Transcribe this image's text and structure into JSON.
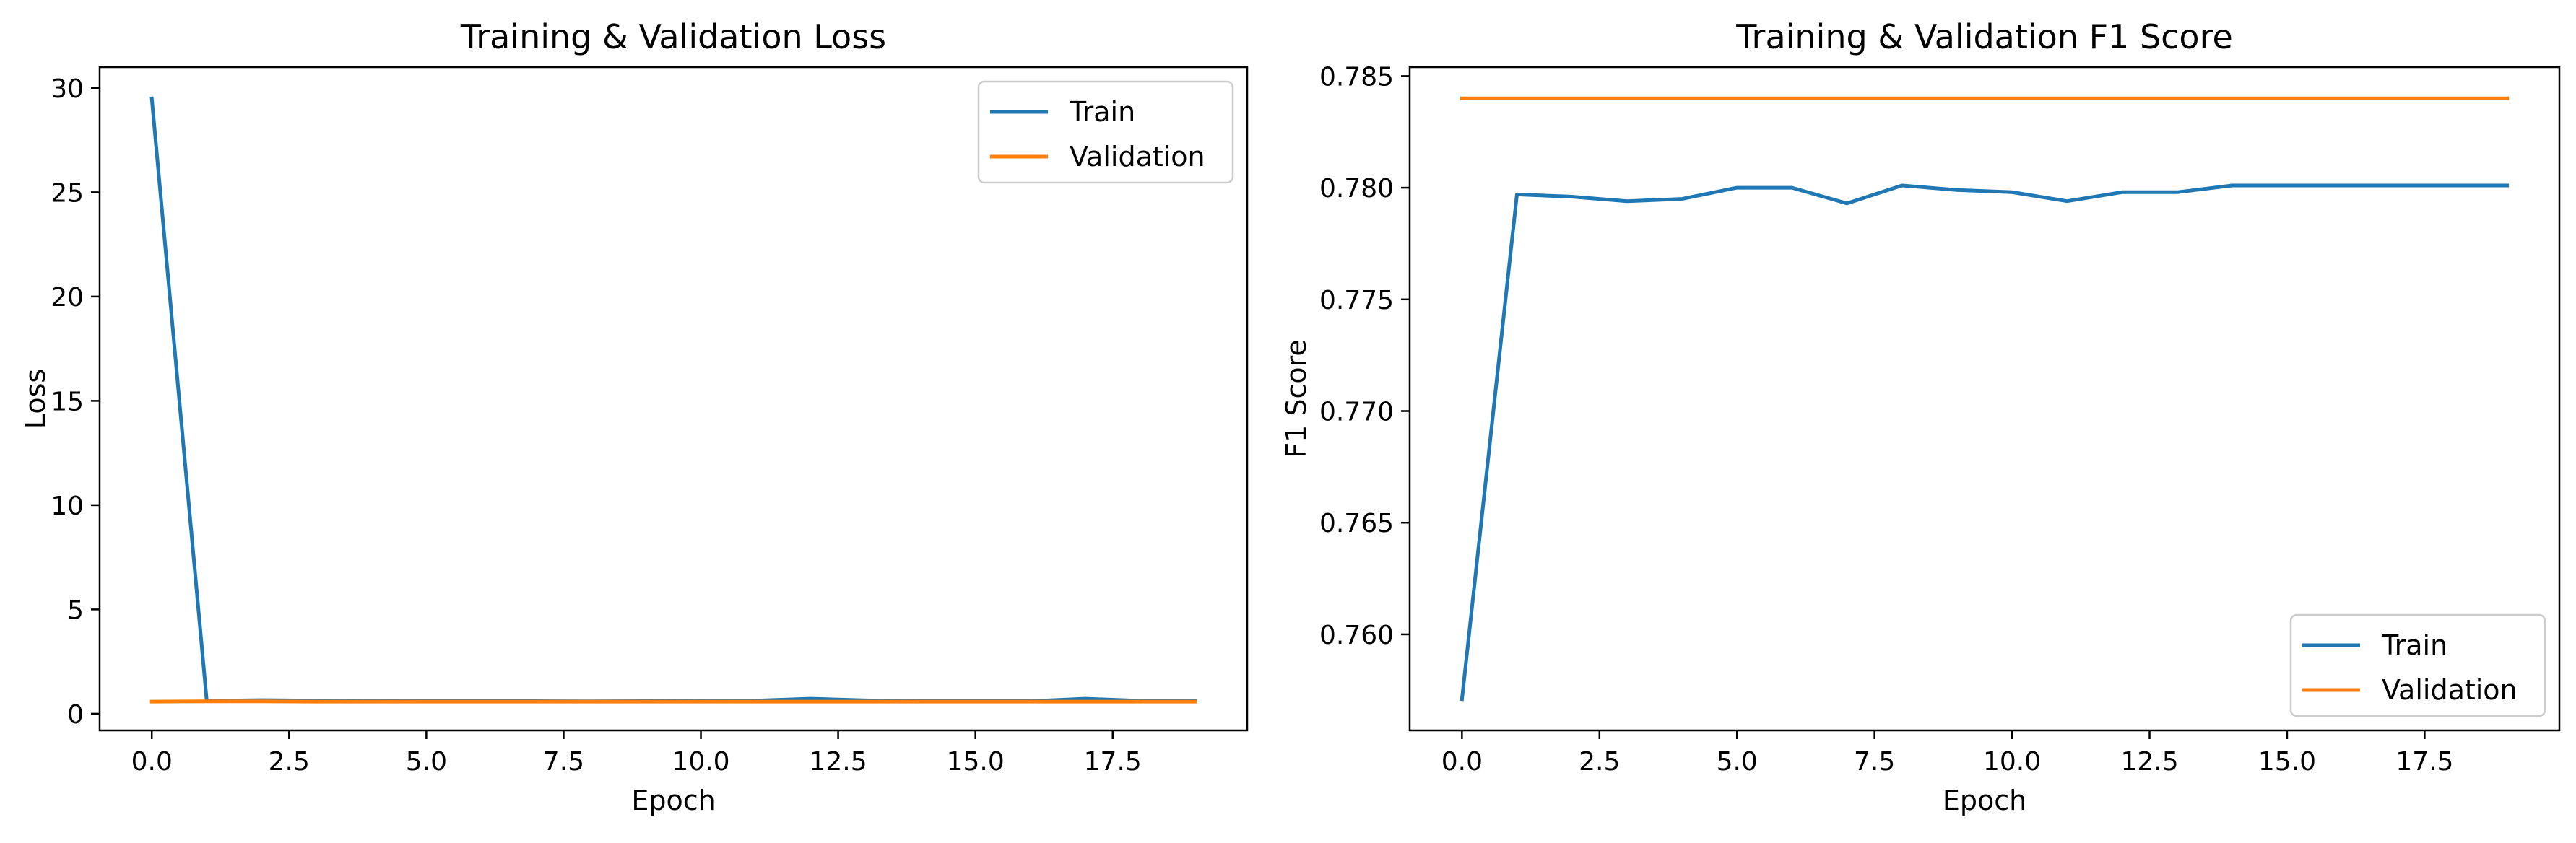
{
  "chart_data": [
    {
      "type": "line",
      "title": "Training & Validation Loss",
      "xlabel": "Epoch",
      "ylabel": "Loss",
      "x": [
        0,
        1,
        2,
        3,
        4,
        5,
        6,
        7,
        8,
        9,
        10,
        11,
        12,
        13,
        14,
        15,
        16,
        17,
        18,
        19
      ],
      "xlim": [
        -0.95,
        19.95
      ],
      "ylim": [
        -0.8,
        31.0
      ],
      "xticks": [
        0,
        2.5,
        5,
        7.5,
        10,
        12.5,
        15,
        17.5
      ],
      "xtick_labels": [
        "0.0",
        "2.5",
        "5.0",
        "7.5",
        "10.0",
        "12.5",
        "15.0",
        "17.5"
      ],
      "yticks": [
        0,
        5,
        10,
        15,
        20,
        25,
        30
      ],
      "ytick_labels": [
        "0",
        "5",
        "10",
        "15",
        "20",
        "25",
        "30"
      ],
      "grid": false,
      "legend_position": "top-right",
      "series": [
        {
          "name": "Train",
          "color": "#1f77b4",
          "values": [
            29.5,
            0.62,
            0.65,
            0.63,
            0.61,
            0.6,
            0.6,
            0.6,
            0.59,
            0.6,
            0.62,
            0.63,
            0.72,
            0.64,
            0.6,
            0.6,
            0.6,
            0.72,
            0.62,
            0.61
          ]
        },
        {
          "name": "Validation",
          "color": "#ff7f0e",
          "values": [
            0.58,
            0.59,
            0.59,
            0.58,
            0.58,
            0.58,
            0.58,
            0.58,
            0.58,
            0.58,
            0.58,
            0.58,
            0.58,
            0.58,
            0.58,
            0.58,
            0.58,
            0.58,
            0.58,
            0.58
          ]
        }
      ]
    },
    {
      "type": "line",
      "title": "Training & Validation F1 Score",
      "xlabel": "Epoch",
      "ylabel": "F1 Score",
      "x": [
        0,
        1,
        2,
        3,
        4,
        5,
        6,
        7,
        8,
        9,
        10,
        11,
        12,
        13,
        14,
        15,
        16,
        17,
        18,
        19
      ],
      "xlim": [
        -0.95,
        19.95
      ],
      "ylim": [
        0.7557,
        0.7854
      ],
      "xticks": [
        0,
        2.5,
        5,
        7.5,
        10,
        12.5,
        15,
        17.5
      ],
      "xtick_labels": [
        "0.0",
        "2.5",
        "5.0",
        "7.5",
        "10.0",
        "12.5",
        "15.0",
        "17.5"
      ],
      "yticks": [
        0.76,
        0.765,
        0.77,
        0.775,
        0.78,
        0.785
      ],
      "ytick_labels": [
        "0.760",
        "0.765",
        "0.770",
        "0.775",
        "0.780",
        "0.785"
      ],
      "grid": false,
      "legend_position": "bottom-right",
      "series": [
        {
          "name": "Train",
          "color": "#1f77b4",
          "values": [
            0.7571,
            0.7797,
            0.7796,
            0.7794,
            0.7795,
            0.78,
            0.78,
            0.7793,
            0.7801,
            0.7799,
            0.7798,
            0.7794,
            0.7798,
            0.7798,
            0.7801,
            0.7801,
            0.7801,
            0.7801,
            0.7801,
            0.7801
          ]
        },
        {
          "name": "Validation",
          "color": "#ff7f0e",
          "values": [
            0.784,
            0.784,
            0.784,
            0.784,
            0.784,
            0.784,
            0.784,
            0.784,
            0.784,
            0.784,
            0.784,
            0.784,
            0.784,
            0.784,
            0.784,
            0.784,
            0.784,
            0.784,
            0.784,
            0.784
          ]
        }
      ]
    }
  ]
}
